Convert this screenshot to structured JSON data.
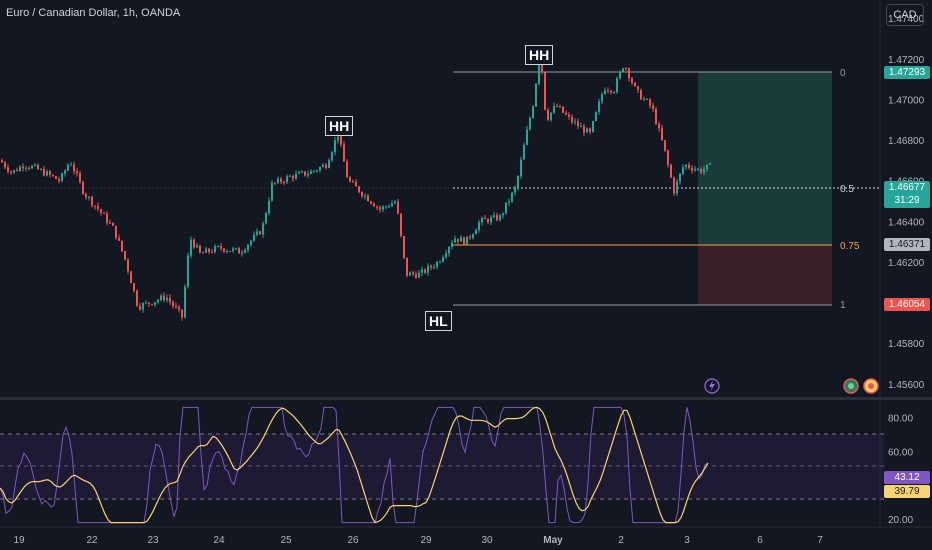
{
  "title": "Euro / Canadian Dollar, 1h, OANDA",
  "currency_button": "CAD",
  "annotations": {
    "hh1": "HH",
    "hh2": "HH",
    "hl": "HL"
  },
  "fib_levels": [
    "0",
    "0.5",
    "0.75",
    "1"
  ],
  "price_axis": [
    "1.47400",
    "1.47200",
    "1.47000",
    "1.46800",
    "1.46600",
    "1.46400",
    "1.46200",
    "1.46000",
    "1.45800",
    "1.45600"
  ],
  "price_tags": {
    "upper": "1.47293",
    "current": "1.46677",
    "countdown": "31:29",
    "mid": "1.46371",
    "lower": "1.46054"
  },
  "rsi_axis": [
    "80.00",
    "60.00",
    "20.00"
  ],
  "rsi_tags": {
    "rsi": "43.12",
    "ma": "39.79"
  },
  "time_axis": [
    "19",
    "22",
    "23",
    "24",
    "25",
    "26",
    "29",
    "30",
    "May",
    "2",
    "3",
    "6",
    "7"
  ],
  "icons": [
    "lightning-icon",
    "earnings-icon",
    "dividend-icon"
  ],
  "colors": {
    "background": "#131722",
    "up": "#26a69a",
    "down": "#ef5350",
    "rsi_line": "#7e57c2",
    "rsi_ma": "#f7d373",
    "fib_orange": "#f0a04b"
  },
  "chart_data": {
    "type": "candlestick",
    "symbol": "Euro / Canadian Dollar",
    "interval": "1h",
    "ylim": [
      1.4556,
      1.4745
    ],
    "key_levels": {
      "fib_0": 1.47293,
      "fib_0_5": 1.46677,
      "fib_0_75": 1.46371,
      "fib_1": 1.46054
    },
    "approx_close_path": [
      [
        0,
        1.467
      ],
      [
        12,
        1.4664
      ],
      [
        24,
        1.4668
      ],
      [
        36,
        1.4666
      ],
      [
        48,
        1.4663
      ],
      [
        60,
        1.466
      ],
      [
        70,
        1.467
      ],
      [
        84,
        1.4654
      ],
      [
        100,
        1.4645
      ],
      [
        114,
        1.4636
      ],
      [
        126,
        1.462
      ],
      [
        138,
        1.4598
      ],
      [
        150,
        1.46
      ],
      [
        166,
        1.4603
      ],
      [
        182,
        1.4593
      ],
      [
        190,
        1.4632
      ],
      [
        200,
        1.4624
      ],
      [
        220,
        1.4627
      ],
      [
        240,
        1.4625
      ],
      [
        262,
        1.4636
      ],
      [
        272,
        1.4658
      ],
      [
        290,
        1.4662
      ],
      [
        310,
        1.4664
      ],
      [
        326,
        1.4668
      ],
      [
        338,
        1.4683
      ],
      [
        348,
        1.466
      ],
      [
        362,
        1.4654
      ],
      [
        380,
        1.4646
      ],
      [
        396,
        1.465
      ],
      [
        406,
        1.4614
      ],
      [
        420,
        1.4614
      ],
      [
        438,
        1.462
      ],
      [
        454,
        1.4632
      ],
      [
        466,
        1.463
      ],
      [
        480,
        1.464
      ],
      [
        500,
        1.4642
      ],
      [
        516,
        1.4657
      ],
      [
        526,
        1.4682
      ],
      [
        534,
        1.47
      ],
      [
        540,
        1.4726
      ],
      [
        546,
        1.469
      ],
      [
        556,
        1.4697
      ],
      [
        570,
        1.469
      ],
      [
        590,
        1.4683
      ],
      [
        604,
        1.4706
      ],
      [
        614,
        1.4705
      ],
      [
        624,
        1.4718
      ],
      [
        636,
        1.4704
      ],
      [
        652,
        1.4696
      ],
      [
        664,
        1.4676
      ],
      [
        674,
        1.4655
      ],
      [
        684,
        1.4668
      ],
      [
        700,
        1.4665
      ],
      [
        710,
        1.4667
      ]
    ],
    "rsi": {
      "ylim": [
        16,
        88
      ],
      "bands": [
        70,
        50,
        30
      ],
      "tick_labels": [
        80,
        60,
        20
      ],
      "current": 43.12,
      "ma_current": 39.79
    }
  }
}
